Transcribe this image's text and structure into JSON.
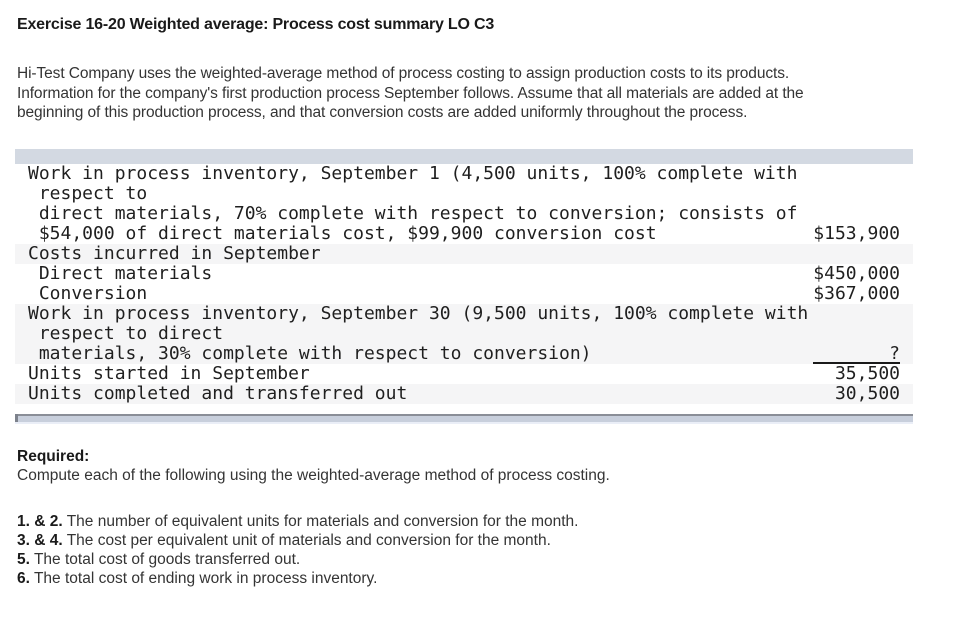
{
  "title": "Exercise 16-20 Weighted average: Process cost summary LO C3",
  "intro_lines": [
    "Hi-Test Company uses the weighted-average method of process costing to assign production costs to its products.",
    "Information for the company's first production process September follows. Assume that all materials are added at the",
    "beginning of this production process, and that conversion costs are added uniformly throughout the process."
  ],
  "table": {
    "lines": [
      {
        "text": "Work in process inventory, September 1 (4,500 units, 100% complete with",
        "value": ""
      },
      {
        "text": " respect to",
        "value": ""
      },
      {
        "text": " direct materials, 70% complete with respect to conversion; consists of",
        "value": ""
      },
      {
        "text": " $54,000 of direct materials cost, $99,900 conversion cost",
        "value": "$153,900"
      },
      {
        "text": "Costs incurred in September",
        "value": ""
      },
      {
        "text": " Direct materials",
        "value": "$450,000"
      },
      {
        "text": " Conversion",
        "value": "$367,000"
      },
      {
        "text": "Work in process inventory, September 30 (9,500 units, 100% complete with",
        "value": ""
      },
      {
        "text": " respect to direct",
        "value": ""
      },
      {
        "text": " materials, 30% complete with respect to conversion)",
        "value": "?"
      },
      {
        "text": "Units started in September",
        "value": "35,500"
      },
      {
        "text": "Units completed and transferred out",
        "value": "30,500"
      }
    ]
  },
  "required": {
    "label": "Required:",
    "instruction": "Compute each of the following using the weighted-average method of process costing."
  },
  "items": [
    {
      "prefix": "1. & 2.",
      "text": " The number of equivalent units for materials and conversion for the month."
    },
    {
      "prefix": "3. & 4.",
      "text": " The cost per equivalent unit of materials and conversion for the month."
    },
    {
      "prefix": "5.",
      "text": " The total cost of goods transferred out."
    },
    {
      "prefix": "6.",
      "text": " The total cost of ending work in process inventory."
    }
  ],
  "colors": {
    "header-bar": "#d3d9e2",
    "row-stripe": "#f5f5f6",
    "rule": "#1a1a1a",
    "scrollbar-track": "#eaeef7",
    "scrollbar-thumb": "#c8cfdc",
    "scrollbar-edge": "#8a8e97",
    "text": "#1f1f1f"
  }
}
